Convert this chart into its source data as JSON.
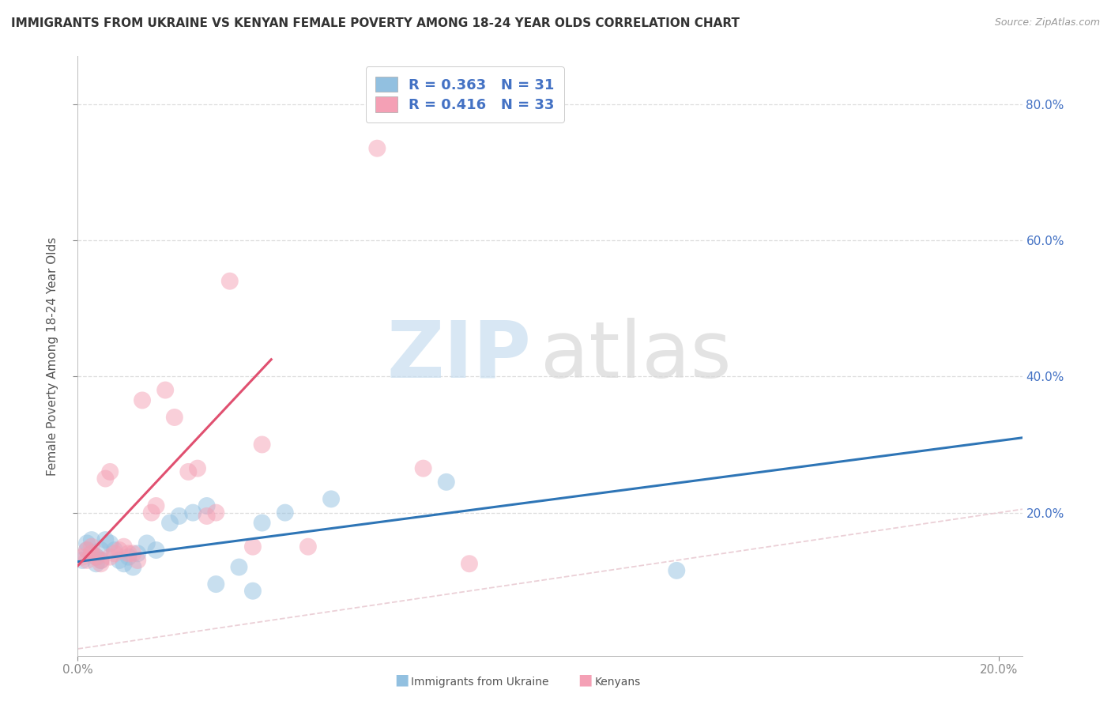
{
  "title": "IMMIGRANTS FROM UKRAINE VS KENYAN FEMALE POVERTY AMONG 18-24 YEAR OLDS CORRELATION CHART",
  "source": "Source: ZipAtlas.com",
  "ylabel": "Female Poverty Among 18-24 Year Olds",
  "xlim": [
    0.0,
    0.205
  ],
  "ylim": [
    -0.01,
    0.87
  ],
  "watermark_zip": "ZIP",
  "watermark_atlas": "atlas",
  "legend_r_ukraine": "R = 0.363",
  "legend_n_ukraine": "N = 31",
  "legend_r_kenyan": "R = 0.416",
  "legend_n_kenyan": "N = 33",
  "ukraine_color": "#92C0E0",
  "kenyan_color": "#F4A0B5",
  "ukraine_line_color": "#2E75B6",
  "kenyan_line_color": "#E05070",
  "diagonal_color": "#CCCCCC",
  "ukraine_scatter_x": [
    0.001,
    0.002,
    0.002,
    0.003,
    0.003,
    0.004,
    0.004,
    0.005,
    0.005,
    0.006,
    0.007,
    0.008,
    0.009,
    0.01,
    0.011,
    0.012,
    0.013,
    0.015,
    0.017,
    0.02,
    0.022,
    0.025,
    0.028,
    0.03,
    0.035,
    0.038,
    0.04,
    0.045,
    0.055,
    0.08,
    0.13
  ],
  "ukraine_scatter_y": [
    0.13,
    0.145,
    0.155,
    0.14,
    0.16,
    0.125,
    0.135,
    0.145,
    0.13,
    0.16,
    0.155,
    0.145,
    0.13,
    0.125,
    0.135,
    0.12,
    0.14,
    0.155,
    0.145,
    0.185,
    0.195,
    0.2,
    0.21,
    0.095,
    0.12,
    0.085,
    0.185,
    0.2,
    0.22,
    0.245,
    0.115
  ],
  "kenyan_scatter_x": [
    0.001,
    0.002,
    0.002,
    0.003,
    0.003,
    0.004,
    0.005,
    0.005,
    0.006,
    0.007,
    0.007,
    0.008,
    0.009,
    0.01,
    0.011,
    0.012,
    0.013,
    0.014,
    0.016,
    0.017,
    0.019,
    0.021,
    0.024,
    0.026,
    0.028,
    0.03,
    0.033,
    0.038,
    0.04,
    0.05,
    0.065,
    0.075,
    0.085
  ],
  "kenyan_scatter_y": [
    0.135,
    0.145,
    0.13,
    0.15,
    0.14,
    0.135,
    0.13,
    0.125,
    0.25,
    0.26,
    0.135,
    0.14,
    0.145,
    0.15,
    0.14,
    0.14,
    0.13,
    0.365,
    0.2,
    0.21,
    0.38,
    0.34,
    0.26,
    0.265,
    0.195,
    0.2,
    0.54,
    0.15,
    0.3,
    0.15,
    0.735,
    0.265,
    0.125
  ],
  "ukraine_trend_x": [
    0.0,
    0.205
  ],
  "ukraine_trend_y": [
    0.128,
    0.31
  ],
  "kenyan_trend_x": [
    0.0,
    0.042
  ],
  "kenyan_trend_y": [
    0.122,
    0.425
  ],
  "background_color": "#FFFFFF",
  "grid_color": "#DDDDDD"
}
